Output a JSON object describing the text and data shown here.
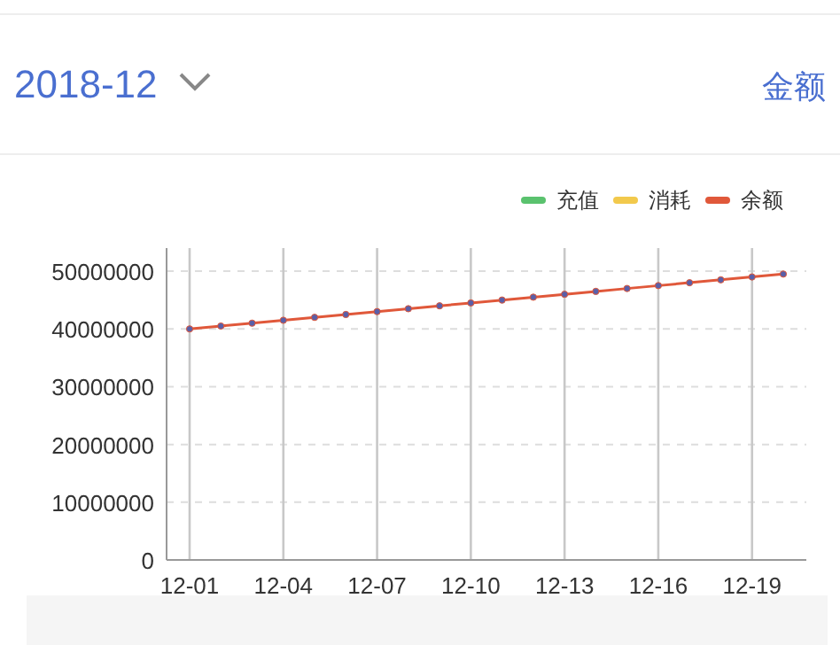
{
  "chart_data": {
    "type": "line",
    "title": "2018-12",
    "annotations": [
      "金额"
    ],
    "categories": [
      "12-01",
      null,
      null,
      "12-04",
      null,
      null,
      "12-07",
      null,
      null,
      "12-10",
      null,
      null,
      "12-13",
      null,
      null,
      "12-16",
      null,
      null,
      "12-19",
      null
    ],
    "series": [
      {
        "name": "充值",
        "color": "#5ac26e",
        "values": [
          null,
          null,
          null,
          null,
          null,
          null,
          null,
          null,
          null,
          null,
          null,
          null,
          null,
          null,
          null,
          null,
          null,
          null,
          null,
          null
        ]
      },
      {
        "name": "消耗",
        "color": "#f2c94c",
        "values": [
          null,
          null,
          null,
          null,
          null,
          null,
          null,
          null,
          null,
          null,
          null,
          null,
          null,
          null,
          null,
          null,
          null,
          null,
          null,
          null
        ]
      },
      {
        "name": "余额",
        "color": "#e0583a",
        "values": [
          40000000,
          40500000,
          41000000,
          41500000,
          42000000,
          42500000,
          43000000,
          43500000,
          44000000,
          44500000,
          45000000,
          45500000,
          46000000,
          46500000,
          47000000,
          47500000,
          48000000,
          48500000,
          49000000,
          49500000
        ]
      }
    ],
    "ylim": [
      0,
      54000000
    ],
    "yticks": [
      0,
      10000000,
      20000000,
      30000000,
      40000000,
      50000000
    ],
    "grid": true,
    "legend": "top right",
    "marker": "circle",
    "line_style": "solid"
  }
}
